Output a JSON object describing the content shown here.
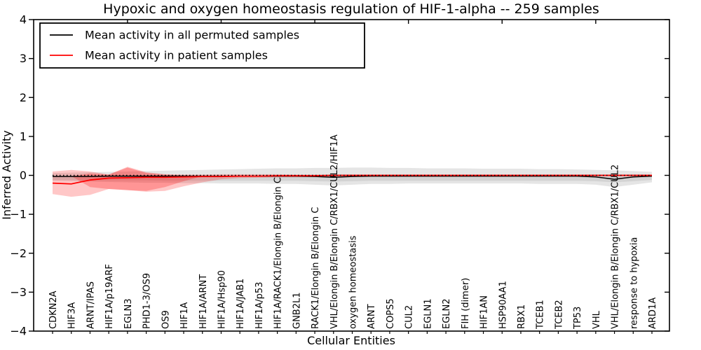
{
  "title": "Hypoxic and oxygen homeostasis regulation of HIF-1-alpha -- 259 samples",
  "legend": {
    "items": [
      {
        "label": "Mean activity in all permuted samples",
        "color": "#000000"
      },
      {
        "label": "Mean activity in patient samples",
        "color": "#ff0000"
      }
    ]
  },
  "axes": {
    "ylabel": "Inferred Activity",
    "xlabel": "Cellular Entities",
    "ytick_labels": [
      "4",
      "3",
      "2",
      "1",
      "0",
      "−1",
      "−2",
      "−3",
      "−4"
    ],
    "ytick_values": [
      4,
      3,
      2,
      1,
      0,
      -1,
      -2,
      -3,
      -4
    ]
  },
  "chart_data": {
    "type": "line",
    "title": "Hypoxic and oxygen homeostasis regulation of HIF-1-alpha -- 259 samples",
    "xlabel": "Cellular Entities",
    "ylabel": "Inferred Activity",
    "ylim": [
      -4,
      4
    ],
    "grid": false,
    "legend_position": "upper left",
    "top_tick_indices": [
      4,
      9,
      14,
      19,
      24,
      29
    ],
    "zero_line": {
      "y": 0,
      "style": "dotted",
      "color": "#000000"
    },
    "categories": [
      "CDKN2A",
      "HIF3A",
      "ARNT/IPAS",
      "HIF1A/p19ARF",
      "EGLN3",
      "PHD1-3/OS9",
      "OS9",
      "HIF1A",
      "HIF1A/ARNT",
      "HIF1A/Hsp90",
      "HIF1A/JAB1",
      "HIF1A/p53",
      "HIF1A/RACK1/Elongin B/Elongin C",
      "GNB2L1",
      "RACK1/Elongin B/Elongin C",
      "VHL/Elongin B/Elongin C/RBX1/CUL2/HIF1A",
      "oxygen homeostasis",
      "ARNT",
      "COPS5",
      "CUL2",
      "EGLN1",
      "EGLN2",
      "FIH (dimer)",
      "HIF1AN",
      "HSP90AA1",
      "RBX1",
      "TCEB1",
      "TCEB2",
      "TP53",
      "VHL",
      "VHL/Elongin B/Elongin C/RBX1/CUL2",
      "response to hypoxia",
      "ARD1A"
    ],
    "series": [
      {
        "name": "Mean activity in all permuted samples",
        "kind": "line",
        "color": "#000000",
        "values": [
          -0.03,
          -0.03,
          -0.03,
          -0.02,
          -0.02,
          -0.02,
          -0.02,
          -0.02,
          -0.02,
          -0.02,
          -0.02,
          -0.02,
          -0.02,
          -0.02,
          -0.03,
          -0.05,
          -0.03,
          -0.02,
          -0.02,
          -0.02,
          -0.02,
          -0.02,
          -0.02,
          -0.02,
          -0.02,
          -0.02,
          -0.02,
          -0.02,
          -0.02,
          -0.04,
          -0.1,
          -0.04,
          -0.02
        ]
      },
      {
        "name": "Mean activity in patient samples",
        "kind": "line",
        "color": "#ff0000",
        "values": [
          -0.2,
          -0.22,
          -0.12,
          -0.07,
          -0.06,
          -0.05,
          -0.05,
          -0.04,
          -0.03,
          -0.03,
          -0.02,
          -0.02,
          -0.01,
          -0.01,
          -0.01,
          0.0,
          0.0,
          0.0,
          0.0,
          0.0,
          0.0,
          0.0,
          0.0,
          0.0,
          0.0,
          0.0,
          0.0,
          0.0,
          0.0,
          0.0,
          0.0,
          0.0,
          0.0
        ]
      },
      {
        "name": "Permuted samples spread (outer)",
        "kind": "band",
        "color": "rgba(0,0,0,0.10)",
        "upper": [
          0.06,
          0.07,
          0.08,
          0.09,
          0.1,
          0.11,
          0.12,
          0.13,
          0.14,
          0.15,
          0.16,
          0.17,
          0.18,
          0.18,
          0.19,
          0.19,
          0.2,
          0.2,
          0.19,
          0.19,
          0.18,
          0.18,
          0.18,
          0.17,
          0.17,
          0.17,
          0.16,
          0.16,
          0.15,
          0.14,
          0.13,
          0.11,
          0.09
        ],
        "lower": [
          -0.14,
          -0.15,
          -0.16,
          -0.17,
          -0.18,
          -0.19,
          -0.19,
          -0.2,
          -0.2,
          -0.21,
          -0.21,
          -0.21,
          -0.22,
          -0.22,
          -0.24,
          -0.26,
          -0.24,
          -0.22,
          -0.22,
          -0.21,
          -0.21,
          -0.21,
          -0.21,
          -0.21,
          -0.21,
          -0.21,
          -0.22,
          -0.22,
          -0.22,
          -0.24,
          -0.3,
          -0.24,
          -0.18
        ]
      },
      {
        "name": "Permuted samples spread (inner)",
        "kind": "band",
        "color": "rgba(0,0,0,0.08)",
        "upper": [
          -0.03,
          -0.03,
          -0.03,
          -0.03,
          -0.03,
          -0.03,
          -0.03,
          -0.03,
          -0.03,
          -0.03,
          -0.03,
          -0.03,
          -0.03,
          -0.03,
          -0.03,
          -0.03,
          -0.03,
          -0.03,
          -0.03,
          -0.03,
          -0.03,
          -0.03,
          -0.03,
          -0.03,
          -0.03,
          -0.03,
          -0.03,
          -0.03,
          -0.03,
          -0.03,
          -0.03,
          -0.03,
          -0.03
        ],
        "lower": [
          -0.12,
          -0.12,
          -0.13,
          -0.13,
          -0.13,
          -0.13,
          -0.14,
          -0.14,
          -0.14,
          -0.14,
          -0.14,
          -0.14,
          -0.14,
          -0.14,
          -0.15,
          -0.16,
          -0.15,
          -0.14,
          -0.14,
          -0.14,
          -0.14,
          -0.14,
          -0.14,
          -0.14,
          -0.14,
          -0.14,
          -0.14,
          -0.14,
          -0.14,
          -0.15,
          -0.18,
          -0.15,
          -0.12
        ]
      },
      {
        "name": "Patient samples spread (outer)",
        "kind": "band",
        "color": "rgba(255,0,0,0.22)",
        "upper": [
          0.1,
          0.14,
          0.1,
          0.02,
          0.22,
          0.08,
          0.03,
          0.02,
          0.02,
          0.03,
          0.03,
          0.03,
          0.03,
          0.02,
          0.02,
          0.02,
          0.02,
          0.02,
          0.02,
          0.02,
          0.02,
          0.02,
          0.02,
          0.02,
          0.02,
          0.02,
          0.02,
          0.02,
          0.02,
          0.02,
          0.02,
          0.02,
          0.02
        ],
        "lower": [
          -0.48,
          -0.55,
          -0.5,
          -0.35,
          -0.38,
          -0.42,
          -0.4,
          -0.28,
          -0.18,
          -0.1,
          -0.07,
          -0.06,
          -0.05,
          -0.05,
          -0.04,
          -0.04,
          -0.04,
          -0.03,
          -0.03,
          -0.03,
          -0.03,
          -0.03,
          -0.03,
          -0.03,
          -0.03,
          -0.03,
          -0.03,
          -0.03,
          -0.03,
          -0.03,
          -0.03,
          -0.03,
          -0.03
        ]
      },
      {
        "name": "Patient samples spread (inner)",
        "kind": "band",
        "color": "rgba(255,0,0,0.25)",
        "x_indices": [
          1,
          2,
          3,
          4,
          5,
          6,
          7,
          8
        ],
        "upper": [
          -0.02,
          0.05,
          0.02,
          0.2,
          0.06,
          0.02,
          0.0,
          -0.02
        ],
        "lower": [
          -0.02,
          -0.3,
          -0.35,
          -0.38,
          -0.4,
          -0.3,
          -0.15,
          -0.02
        ]
      }
    ]
  }
}
